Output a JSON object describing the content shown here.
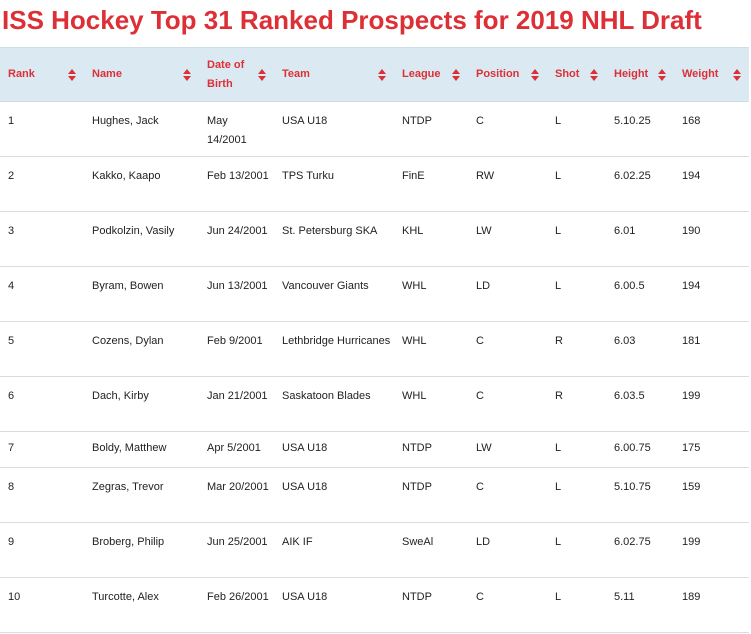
{
  "page": {
    "title": "ISS Hockey Top 31 Ranked Prospects for 2019 NHL Draft"
  },
  "table": {
    "headers": [
      "Rank",
      "Name",
      "Date of Birth",
      "Team",
      "League",
      "Position",
      "Shot",
      "Height",
      "Weight"
    ],
    "rows": [
      [
        "1",
        "Hughes, Jack",
        "May 14/2001",
        "USA U18",
        "NTDP",
        "C",
        "L",
        "5.10.25",
        "168"
      ],
      [
        "2",
        "Kakko, Kaapo",
        "Feb 13/2001",
        "TPS Turku",
        "FinE",
        "RW",
        "L",
        "6.02.25",
        "194"
      ],
      [
        "3",
        "Podkolzin, Vasily",
        "Jun 24/2001",
        "St. Petersburg SKA",
        "KHL",
        "LW",
        "L",
        "6.01",
        "190"
      ],
      [
        "4",
        "Byram, Bowen",
        "Jun 13/2001",
        "Vancouver Giants",
        "WHL",
        "LD",
        "L",
        "6.00.5",
        "194"
      ],
      [
        "5",
        "Cozens, Dylan",
        "Feb 9/2001",
        "Lethbridge Hurricanes",
        "WHL",
        "C",
        "R",
        "6.03",
        "181"
      ],
      [
        "6",
        "Dach, Kirby",
        "Jan 21/2001",
        "Saskatoon Blades",
        "WHL",
        "C",
        "R",
        "6.03.5",
        "199"
      ],
      [
        "7",
        "Boldy, Matthew",
        "Apr 5/2001",
        "USA U18",
        "NTDP",
        "LW",
        "L",
        "6.00.75",
        "175"
      ],
      [
        "8",
        "Zegras, Trevor",
        "Mar 20/2001",
        "USA U18",
        "NTDP",
        "C",
        "L",
        "5.10.75",
        "159"
      ],
      [
        "9",
        "Broberg, Philip",
        "Jun 25/2001",
        "AIK IF",
        "SweAl",
        "LD",
        "L",
        "6.02.75",
        "199"
      ],
      [
        "10",
        "Turcotte, Alex",
        "Feb 26/2001",
        "USA U18",
        "NTDP",
        "C",
        "L",
        "5.11",
        "189"
      ]
    ]
  },
  "colors": {
    "accent": "#dd2f36",
    "header_bg": "#dbeaf2",
    "row_border": "#dcdcdc"
  },
  "icons": {
    "sort": "sort-arrows-icon"
  }
}
